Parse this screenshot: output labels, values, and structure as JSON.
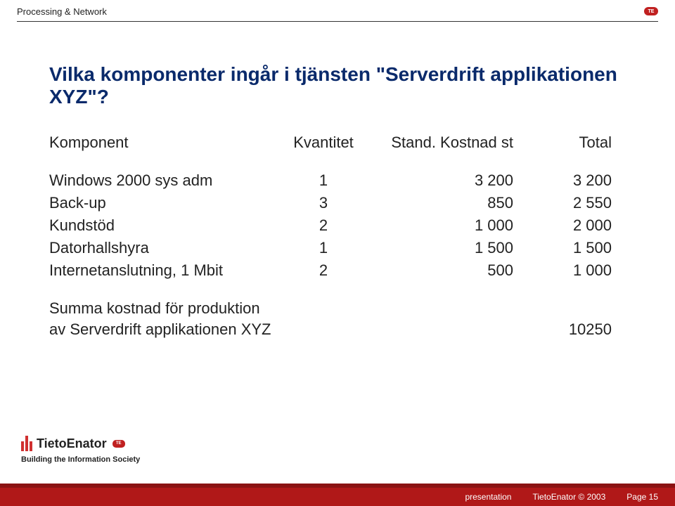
{
  "header": {
    "section": "Processing & Network",
    "logo_text": "TE",
    "rule_color": "#333333"
  },
  "title": "Vilka komponenter ingår i tjänsten \"Serverdrift applikationen XYZ\"?",
  "table": {
    "columns": [
      "Komponent",
      "Kvantitet",
      "Stand. Kostnad st",
      "Total"
    ],
    "rows": [
      {
        "name": "Windows 2000 sys adm",
        "qty": "1",
        "unit": "3 200",
        "total": "3 200"
      },
      {
        "name": "Back-up",
        "qty": "3",
        "unit": "850",
        "total": "2 550"
      },
      {
        "name": "Kundstöd",
        "qty": "2",
        "unit": "1 000",
        "total": "2 000"
      },
      {
        "name": "Datorhallshyra",
        "qty": "1",
        "unit": "1 500",
        "total": "1 500"
      },
      {
        "name": "Internetanslutning, 1 Mbit",
        "qty": "2",
        "unit": "500",
        "total": "1 000"
      }
    ],
    "summary": {
      "line1": "Summa kostnad för produktion",
      "line2": "av Serverdrift applikationen XYZ",
      "total": "10250"
    }
  },
  "footer": {
    "brand_word": "TietoEnator",
    "brand_chip": "TE",
    "tagline": "Building the Information Society",
    "left": "presentation",
    "center": "TietoEnator © 2003",
    "right": "Page 15",
    "band_color": "#b01818",
    "band_top_color": "#8a1212"
  },
  "colors": {
    "title": "#0a2a6b",
    "text": "#222222",
    "background": "#ffffff"
  }
}
